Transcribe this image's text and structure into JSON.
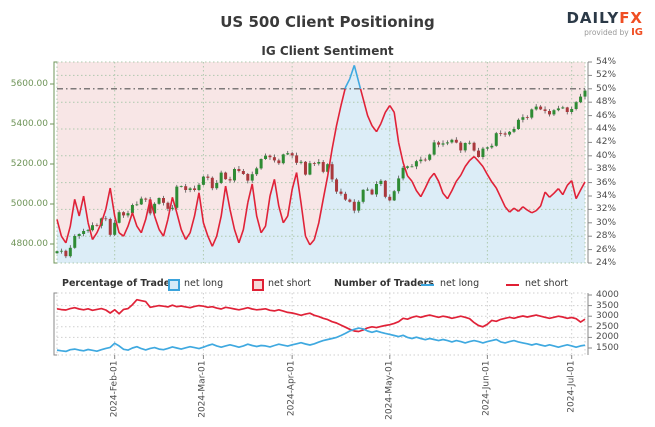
{
  "header": {
    "title": "US 500 Client Positioning",
    "subtitle": "IG Client Sentiment",
    "logo": {
      "daily": "DAILY",
      "fx": "FX",
      "provided_by": "provided by",
      "ig": "IG"
    }
  },
  "legend": {
    "percentage_of_traders": "Percentage of Traders",
    "net_long": "net long",
    "net_short": "net short",
    "number_of_traders": "Number of Traders",
    "net_long_count": "net long",
    "net_short_count": "net short"
  },
  "colors": {
    "net_long_blue": "#3fa9e0",
    "net_short_red": "#e02238",
    "candle_up": "#2e8b34",
    "candle_down": "#aa393d",
    "area_pink": "#f8e6e6",
    "area_blue": "#dcedf7",
    "grid_green": "#aec9ae",
    "grid_gray": "#cfcfcf",
    "axis_green": "#6f9458",
    "axis_gray": "#888888",
    "ref_line": "#555555",
    "wick": "#555555"
  },
  "chart_data": {
    "type": "mixed",
    "panels": [
      {
        "name": "price_and_sentiment",
        "type": "candlestick+line",
        "left_axis": {
          "label_format": "price",
          "ticks": [
            "5600.00",
            "5400.00",
            "5200.00",
            "5000.00",
            "4800.00"
          ],
          "tick_values": [
            5600,
            5400,
            5200,
            5000,
            4800
          ],
          "min": 4705,
          "max": 5710
        },
        "right_axis": {
          "unit": "%",
          "ticks": [
            "54%",
            "52%",
            "50%",
            "48%",
            "46%",
            "44%",
            "42%",
            "40%",
            "38%",
            "36%",
            "34%",
            "32%",
            "30%",
            "28%",
            "26%",
            "24%"
          ],
          "tick_values": [
            54,
            52,
            50,
            48,
            46,
            44,
            42,
            40,
            38,
            36,
            34,
            32,
            30,
            28,
            26,
            24
          ],
          "min": 24,
          "max": 54
        },
        "reference_line_percent": 50,
        "gridline_percents": [
          52,
          48,
          44,
          40,
          36,
          32,
          28
        ],
        "x_tick_labels": [
          "2024-Feb-01",
          "2024-Mar-01",
          "2024-Apr-01",
          "2024-May-01",
          "2024-Jun-01",
          "2024-Jul-01"
        ],
        "x_tick_indices": [
          13,
          33,
          53,
          75,
          97,
          116
        ],
        "price_closes": [
          4764,
          4766,
          4739,
          4781,
          4840,
          4850,
          4865,
          4869,
          4894,
          4891,
          4928,
          4925,
          4846,
          4906,
          4959,
          4943,
          4954,
          4995,
          4998,
          5027,
          5022,
          4953,
          5001,
          5030,
          5006,
          4976,
          4981,
          5087,
          5089,
          5070,
          5078,
          5070,
          5096,
          5137,
          5131,
          5079,
          5105,
          5157,
          5124,
          5118,
          5175,
          5165,
          5150,
          5117,
          5149,
          5178,
          5225,
          5242,
          5234,
          5218,
          5204,
          5248,
          5254,
          5243,
          5206,
          5211,
          5147,
          5204,
          5202,
          5210,
          5161,
          5199,
          5123,
          5062,
          5051,
          5022,
          5011,
          4967,
          5011,
          5071,
          5072,
          5048,
          5100,
          5116,
          5036,
          5018,
          5064,
          5128,
          5181,
          5188,
          5188,
          5214,
          5222,
          5221,
          5247,
          5308,
          5297,
          5303,
          5308,
          5321,
          5307,
          5268,
          5305,
          5306,
          5267,
          5235,
          5277,
          5283,
          5291,
          5354,
          5353,
          5347,
          5361,
          5375,
          5421,
          5434,
          5432,
          5473,
          5487,
          5473,
          5465,
          5448,
          5469,
          5478,
          5483,
          5460,
          5475,
          5509,
          5537,
          5567
        ],
        "net_short_percent": [
          30.5,
          28,
          27,
          29.5,
          33.5,
          31,
          34,
          30,
          27.5,
          28.5,
          30,
          32,
          35.2,
          31,
          28.5,
          28,
          29.5,
          31.5,
          29.5,
          28.5,
          30.5,
          33.5,
          31,
          29,
          28,
          30.5,
          33.8,
          31.5,
          29,
          27.5,
          28.5,
          31,
          34.5,
          30,
          28,
          26.5,
          28,
          31,
          35.5,
          32,
          29,
          27,
          29,
          33,
          35.8,
          31,
          28.5,
          29.5,
          34,
          36.5,
          32.5,
          30,
          31,
          35,
          37.5,
          33,
          28,
          26.7,
          27.5,
          30,
          33.5,
          37,
          41,
          44.5,
          47.5,
          50.2,
          51.5,
          53.5,
          51,
          48.5,
          46,
          44.5,
          43.6,
          44.8,
          46.5,
          47.5,
          46.5,
          42,
          39,
          37,
          36.2,
          34.8,
          33.9,
          35.2,
          36.6,
          37.4,
          36.2,
          34.4,
          33.6,
          34.8,
          36.2,
          37.1,
          38.4,
          39.3,
          39.9,
          39.2,
          38.4,
          37.2,
          36.1,
          35.2,
          33.8,
          32.4,
          31.6,
          32.2,
          31.7,
          32.4,
          31.9,
          31.5,
          31.8,
          32.5,
          34.6,
          33.8,
          34.4,
          35.1,
          34.2,
          35.6,
          36.3,
          33.6,
          34.9,
          36.1
        ]
      },
      {
        "name": "number_of_traders",
        "type": "line",
        "right_axis": {
          "ticks": [
            "4000",
            "3500",
            "3000",
            "2500",
            "2000",
            "1500"
          ],
          "tick_values": [
            4000,
            3500,
            3000,
            2500,
            2000,
            1500
          ],
          "min": 1170,
          "max": 4094
        },
        "gridline_values": [
          3500,
          3000,
          2500,
          2000
        ],
        "net_long_count": [
          1400,
          1370,
          1340,
          1420,
          1450,
          1400,
          1370,
          1430,
          1390,
          1350,
          1420,
          1480,
          1530,
          1720,
          1600,
          1440,
          1400,
          1500,
          1560,
          1470,
          1410,
          1480,
          1520,
          1450,
          1420,
          1480,
          1550,
          1500,
          1450,
          1510,
          1560,
          1520,
          1470,
          1540,
          1620,
          1680,
          1600,
          1540,
          1600,
          1650,
          1600,
          1540,
          1600,
          1680,
          1620,
          1570,
          1620,
          1600,
          1550,
          1620,
          1680,
          1630,
          1590,
          1650,
          1700,
          1750,
          1690,
          1640,
          1700,
          1780,
          1850,
          1900,
          1950,
          2000,
          2090,
          2190,
          2300,
          2380,
          2440,
          2400,
          2300,
          2240,
          2300,
          2240,
          2190,
          2140,
          2090,
          2040,
          2100,
          2000,
          1950,
          2010,
          1950,
          1890,
          1950,
          1900,
          1850,
          1900,
          1850,
          1790,
          1850,
          1800,
          1740,
          1800,
          1850,
          1800,
          1740,
          1800,
          1850,
          1900,
          1790,
          1740,
          1800,
          1850,
          1790,
          1740,
          1700,
          1640,
          1700,
          1640,
          1590,
          1650,
          1600,
          1540,
          1600,
          1650,
          1600,
          1540,
          1600,
          1630
        ],
        "net_short_count": [
          3350,
          3310,
          3290,
          3360,
          3400,
          3340,
          3300,
          3350,
          3280,
          3320,
          3360,
          3290,
          3150,
          3300,
          3120,
          3320,
          3360,
          3540,
          3780,
          3730,
          3690,
          3420,
          3460,
          3500,
          3470,
          3440,
          3520,
          3450,
          3480,
          3440,
          3400,
          3460,
          3500,
          3470,
          3420,
          3450,
          3380,
          3340,
          3420,
          3380,
          3340,
          3300,
          3350,
          3400,
          3340,
          3300,
          3320,
          3350,
          3280,
          3250,
          3300,
          3240,
          3180,
          3150,
          3100,
          3040,
          3100,
          3140,
          3040,
          2980,
          2900,
          2840,
          2740,
          2680,
          2580,
          2480,
          2380,
          2300,
          2280,
          2350,
          2450,
          2500,
          2460,
          2520,
          2560,
          2600,
          2660,
          2740,
          2900,
          2860,
          2950,
          3000,
          2950,
          3010,
          3050,
          3000,
          2950,
          3000,
          2960,
          2900,
          2950,
          3000,
          2950,
          2880,
          2700,
          2560,
          2500,
          2620,
          2800,
          2760,
          2850,
          2900,
          2950,
          2900,
          2960,
          3010,
          2960,
          3010,
          3050,
          3000,
          2950,
          2900,
          2950,
          3000,
          2960,
          2900,
          2940,
          2880,
          2720,
          2860
        ]
      }
    ]
  }
}
